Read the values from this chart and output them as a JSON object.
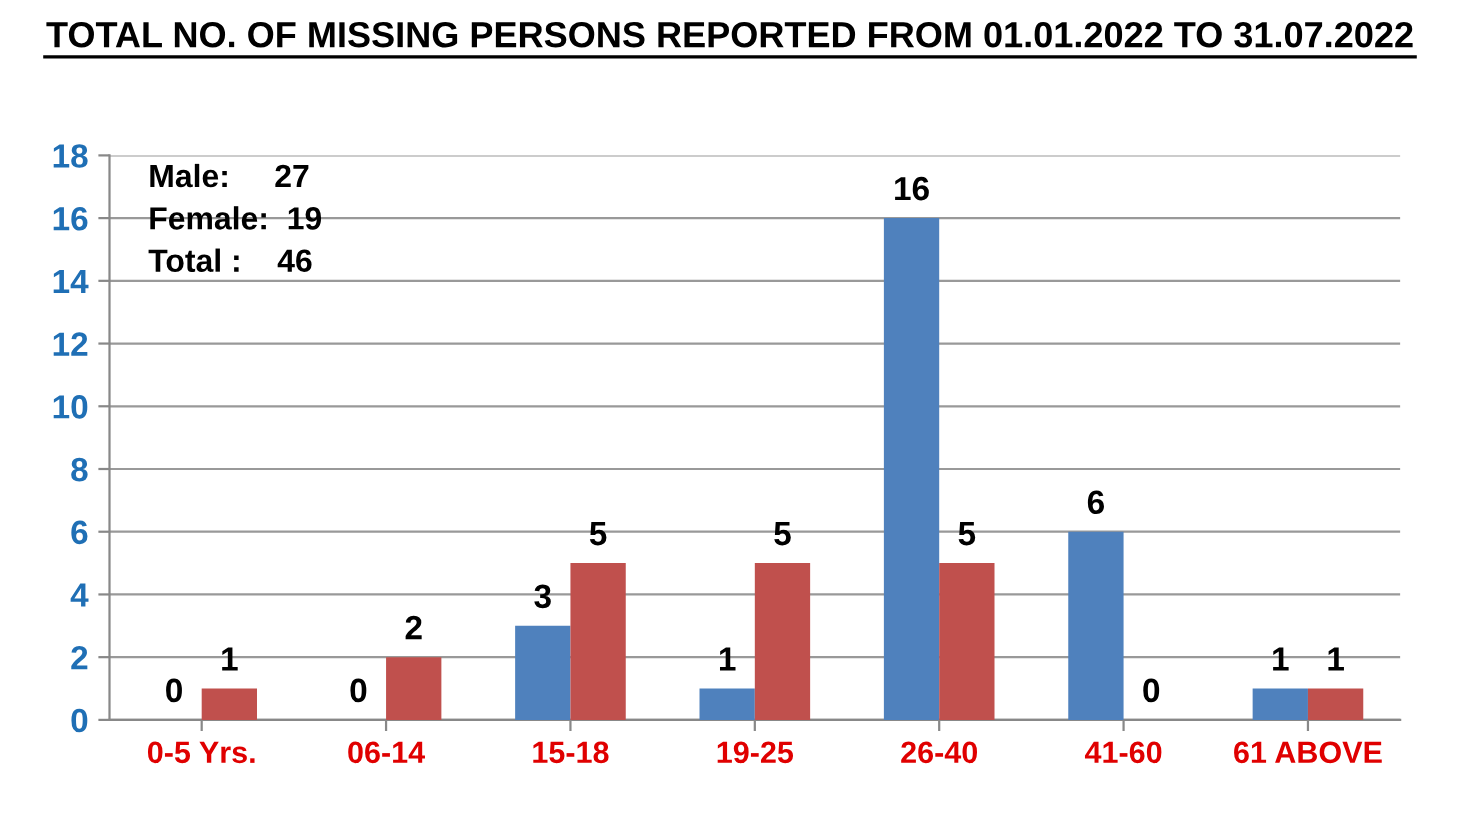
{
  "chart_data": {
    "type": "bar",
    "title": "TOTAL NO. OF MISSING PERSONS REPORTED FROM 01.01.2022 TO 31.07.2022",
    "categories": [
      "0-5 Yrs.",
      "06-14",
      "15-18",
      "19-25",
      "26-40",
      "41-60",
      "61 ABOVE"
    ],
    "series": [
      {
        "color": "#4f81bd",
        "values": [
          0,
          0,
          3,
          1,
          16,
          6,
          1
        ]
      },
      {
        "color": "#c0504d",
        "values": [
          1,
          2,
          5,
          5,
          5,
          0,
          1
        ]
      }
    ],
    "ylim": [
      0,
      18
    ],
    "yticks": [
      0,
      2,
      4,
      6,
      8,
      10,
      12,
      14,
      16,
      18
    ],
    "grid": "y",
    "data_labels": true,
    "annotations": [
      "Male:     27",
      "Female:  19",
      "Total :    46"
    ]
  }
}
